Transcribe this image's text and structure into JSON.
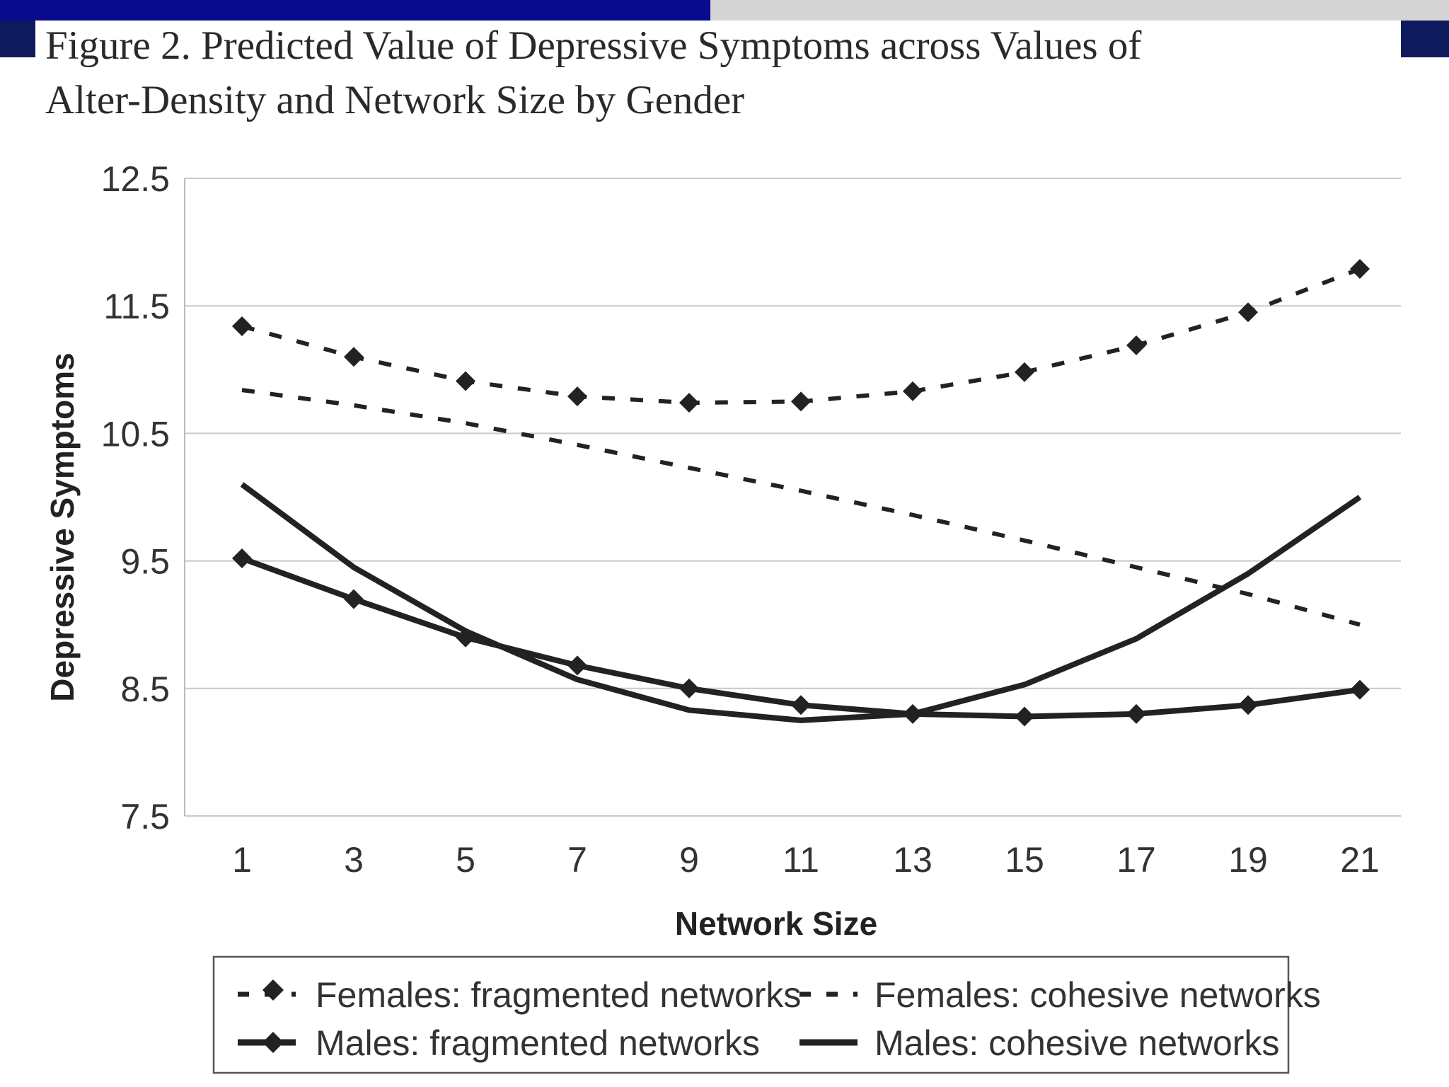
{
  "slide": {
    "title": "Figure 2. Predicted Value of Depressive Symptoms across Values of\nAlter-Density and Network Size by Gender",
    "colors": {
      "bar_left": "#0a0a8c",
      "bar_right": "#d4d4d4",
      "corner": "#0d1a5c"
    }
  },
  "chart_data": {
    "type": "line",
    "title": "Figure 2. Predicted Value of Depressive Symptoms across Values of Alter-Density and Network Size by Gender",
    "xlabel": "Network Size",
    "ylabel": "Depressive Symptoms",
    "x": [
      1,
      3,
      5,
      7,
      9,
      11,
      13,
      15,
      17,
      19,
      21
    ],
    "xticks": [
      "1",
      "3",
      "5",
      "7",
      "9",
      "11",
      "13",
      "15",
      "17",
      "19",
      "21"
    ],
    "yticks": [
      "12.5",
      "11.5",
      "10.5",
      "9.5",
      "8.5",
      "7.5"
    ],
    "ylim": [
      7.5,
      12.5
    ],
    "grid": true,
    "legend_position": "bottom",
    "series": [
      {
        "name": "Females: fragmented networks",
        "style": "dashed",
        "marker": "diamond",
        "values": [
          11.34,
          11.1,
          10.91,
          10.79,
          10.74,
          10.75,
          10.83,
          10.98,
          11.19,
          11.45,
          11.79
        ]
      },
      {
        "name": "Females: cohesive networks",
        "style": "dashed",
        "marker": "none",
        "values": [
          10.84,
          10.72,
          10.58,
          10.41,
          10.23,
          10.05,
          9.86,
          9.66,
          9.45,
          9.24,
          9.0
        ]
      },
      {
        "name": "Males: fragmented networks",
        "style": "solid",
        "marker": "diamond",
        "values": [
          9.52,
          9.2,
          8.9,
          8.68,
          8.5,
          8.37,
          8.3,
          8.28,
          8.3,
          8.37,
          8.49
        ]
      },
      {
        "name": "Males: cohesive networks",
        "style": "solid",
        "marker": "none",
        "values": [
          10.1,
          9.45,
          8.95,
          8.57,
          8.33,
          8.25,
          8.3,
          8.53,
          8.89,
          9.4,
          10.0
        ]
      }
    ]
  }
}
